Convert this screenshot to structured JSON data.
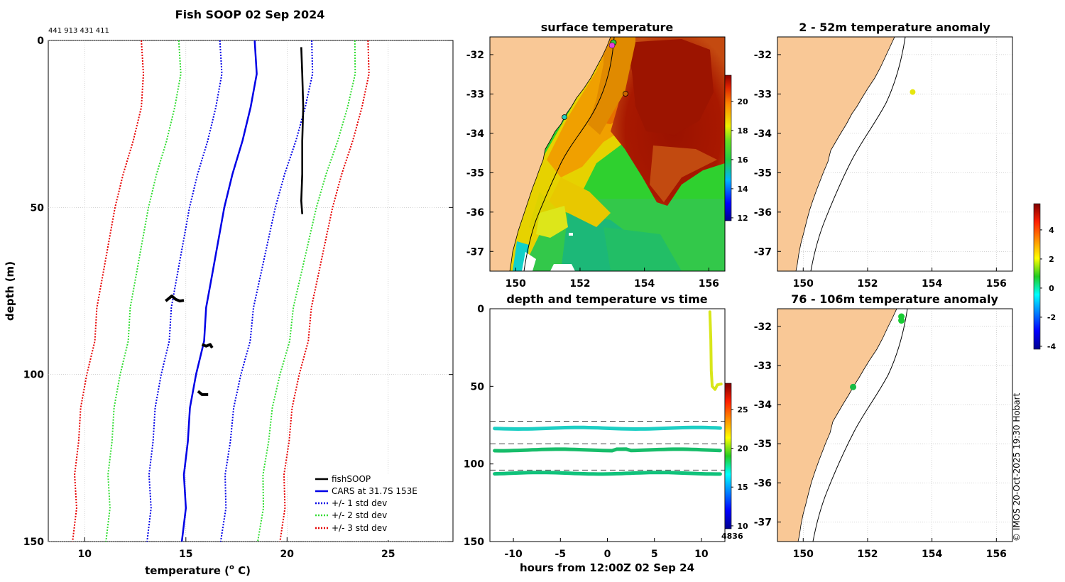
{
  "colors": {
    "land": "#f9c896",
    "fish": "#000000",
    "cars": "#0000e6",
    "std1": "#0000e6",
    "std2": "#33dd33",
    "std3": "#e60000"
  },
  "chart_data": [
    {
      "id": "profile",
      "type": "line",
      "title": "Fish SOOP 02 Sep 2024",
      "subtitle": "441 913 431 411",
      "xlabel": "temperature (",
      "xlabel_sup": "o",
      "xlabel_end": " C)",
      "ylabel": "depth (m)",
      "xlim": [
        8.2,
        28.2
      ],
      "ylim": [
        0,
        150
      ],
      "xticks": [
        10,
        15,
        20,
        25
      ],
      "yticks": [
        0,
        50,
        100,
        150
      ],
      "legend": [
        "fishSOOP",
        "CARS at 31.7S 153E",
        "+/- 1 std dev",
        "+/- 2 std dev",
        "+/- 3 std dev"
      ],
      "cars_mean": [
        [
          18.4,
          0
        ],
        [
          18.5,
          10
        ],
        [
          18.2,
          20
        ],
        [
          17.8,
          30
        ],
        [
          17.3,
          40
        ],
        [
          16.9,
          50
        ],
        [
          16.6,
          60
        ],
        [
          16.3,
          70
        ],
        [
          16.0,
          80
        ],
        [
          15.9,
          90
        ],
        [
          15.5,
          100
        ],
        [
          15.2,
          110
        ],
        [
          15.1,
          120
        ],
        [
          14.9,
          130
        ],
        [
          15.0,
          140
        ],
        [
          14.8,
          150
        ]
      ],
      "fish_segments": [
        [
          [
            20.7,
            2
          ],
          [
            20.75,
            10
          ],
          [
            20.8,
            20
          ],
          [
            20.75,
            30
          ],
          [
            20.75,
            40
          ],
          [
            20.7,
            48
          ],
          [
            20.75,
            52
          ]
        ],
        [
          [
            14.0,
            78
          ],
          [
            14.1,
            77.5
          ],
          [
            14.3,
            76.5
          ],
          [
            14.5,
            77.5
          ],
          [
            14.7,
            78
          ],
          [
            14.9,
            77.8
          ]
        ],
        [
          [
            15.8,
            91
          ],
          [
            16.0,
            91.5
          ],
          [
            16.2,
            91
          ],
          [
            16.3,
            92
          ]
        ],
        [
          [
            15.6,
            105
          ],
          [
            15.8,
            106
          ],
          [
            16.1,
            106
          ]
        ]
      ]
    },
    {
      "id": "sst",
      "type": "heatmap",
      "title": "surface temperature",
      "xticks": [
        "150",
        "152",
        "154",
        "156"
      ],
      "yticks": [
        "-32",
        "-33",
        "-34",
        "-35",
        "-36",
        "-37"
      ],
      "colorbar_ticks": [
        "20",
        "18",
        "16",
        "14",
        "12"
      ],
      "clim": [
        11.5,
        21.5
      ]
    },
    {
      "id": "depth_time",
      "type": "scatter",
      "title": "depth and temperature vs time",
      "xlabel": "hours from 12:00Z 02 Sep 24",
      "xlim": [
        -12.5,
        12.5
      ],
      "ylim": [
        0,
        150
      ],
      "xticks": [
        "-10",
        "-5",
        "0",
        "5",
        "10"
      ],
      "yticks": [
        "0",
        "50",
        "100",
        "150"
      ],
      "colorbar_ticks": [
        "25",
        "20",
        "15",
        "10"
      ],
      "colorbar_label": "4836",
      "dashed_depths": [
        72.5,
        87,
        104
      ],
      "series": [
        {
          "name": "surface-to-50m",
          "color": "#d8e61a",
          "depth_min": 2,
          "depth_max": 52
        },
        {
          "name": "77m",
          "color": "#1ccfc4",
          "depth": 77
        },
        {
          "name": "91m",
          "color": "#17bd6a",
          "depth": 91
        },
        {
          "name": "106m",
          "color": "#0fc27a",
          "depth": 106
        }
      ]
    },
    {
      "id": "anom_upper",
      "type": "scatter",
      "title": "2 - 52m temperature anomaly",
      "xticks": [
        "150",
        "152",
        "154",
        "156"
      ],
      "yticks": [
        "-32",
        "-33",
        "-34",
        "-35",
        "-36",
        "-37"
      ],
      "points": [
        {
          "lon": 153.4,
          "lat": -32.95,
          "color": "#e6e60e"
        }
      ]
    },
    {
      "id": "anom_lower",
      "type": "scatter",
      "title": "76 - 106m temperature anomaly",
      "xticks": [
        "150",
        "152",
        "154",
        "156"
      ],
      "yticks": [
        "-32",
        "-33",
        "-34",
        "-35",
        "-36",
        "-37"
      ],
      "points": [
        {
          "lon": 153.05,
          "lat": -31.85,
          "color": "#17cc33"
        },
        {
          "lon": 153.05,
          "lat": -31.75,
          "color": "#17cc33"
        },
        {
          "lon": 151.55,
          "lat": -33.55,
          "color": "#17bb44"
        }
      ],
      "colorbar_ticks": [
        "4",
        "2",
        "0",
        "-2",
        "-4"
      ]
    }
  ],
  "credit": "© IMOS 20-Oct-2025 19:30 Hobart"
}
